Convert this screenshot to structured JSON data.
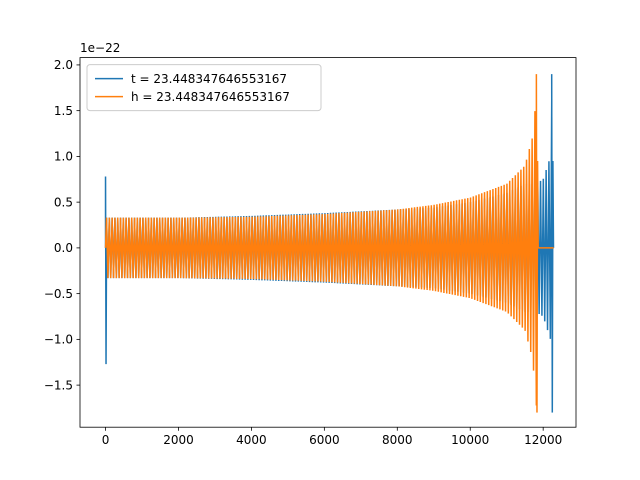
{
  "chart_data": {
    "type": "line",
    "title": "",
    "xlabel": "",
    "ylabel": "",
    "y_offset_text": "1e−22",
    "xlim": [
      -700,
      12900
    ],
    "ylim": [
      -1.96,
      2.08
    ],
    "grid": false,
    "legend_position": "upper left",
    "x_ticks": [
      0,
      2000,
      4000,
      6000,
      8000,
      10000,
      12000
    ],
    "x_tick_labels": [
      "0",
      "2000",
      "4000",
      "6000",
      "8000",
      "10000",
      "12000"
    ],
    "y_ticks": [
      -1.5,
      -1.0,
      -0.5,
      0.0,
      0.5,
      1.0,
      1.5,
      2.0
    ],
    "y_tick_labels": [
      "−1.5",
      "−1.0",
      "−0.5",
      "0.0",
      "0.5",
      "1.0",
      "1.5",
      "2.0"
    ],
    "series": [
      {
        "name": "t = 23.448347646553167",
        "color": "#1f77b4",
        "x_start": 0,
        "x_end": 12288,
        "x_merger": 12250,
        "initial_spike": {
          "x": 0,
          "max": 0.78,
          "min": -1.27
        },
        "envelope": [
          {
            "x": 0,
            "amp": 0.33
          },
          {
            "x": 2000,
            "amp": 0.33
          },
          {
            "x": 4000,
            "amp": 0.35
          },
          {
            "x": 6000,
            "amp": 0.38
          },
          {
            "x": 8000,
            "amp": 0.42
          },
          {
            "x": 9000,
            "amp": 0.44
          },
          {
            "x": 10000,
            "amp": 0.5
          },
          {
            "x": 11000,
            "amp": 0.6
          },
          {
            "x": 11500,
            "amp": 0.7
          },
          {
            "x": 11800,
            "amp": 0.7
          },
          {
            "x": 12000,
            "amp": 0.75
          },
          {
            "x": 12200,
            "amp": 1.0
          },
          {
            "x": 12250,
            "amp": 1.9
          }
        ],
        "merger_peak": {
          "x": 12250,
          "max": 1.9,
          "min": -1.8
        }
      },
      {
        "name": "h = 23.448347646553167",
        "color": "#ff7f0e",
        "x_start": 0,
        "x_end": 12288,
        "x_merger": 11830,
        "initial_spike": null,
        "envelope": [
          {
            "x": 0,
            "amp": 0.33
          },
          {
            "x": 2000,
            "amp": 0.33
          },
          {
            "x": 4000,
            "amp": 0.34
          },
          {
            "x": 6000,
            "amp": 0.37
          },
          {
            "x": 8000,
            "amp": 0.42
          },
          {
            "x": 9000,
            "amp": 0.47
          },
          {
            "x": 10000,
            "amp": 0.55
          },
          {
            "x": 11000,
            "amp": 0.7
          },
          {
            "x": 11500,
            "amp": 0.9
          },
          {
            "x": 11700,
            "amp": 1.2
          },
          {
            "x": 11800,
            "amp": 1.6
          },
          {
            "x": 11830,
            "amp": 1.9
          }
        ],
        "merger_peak": {
          "x": 11830,
          "max": 1.9,
          "min": -1.8
        },
        "tail_value": 0.0
      }
    ]
  }
}
